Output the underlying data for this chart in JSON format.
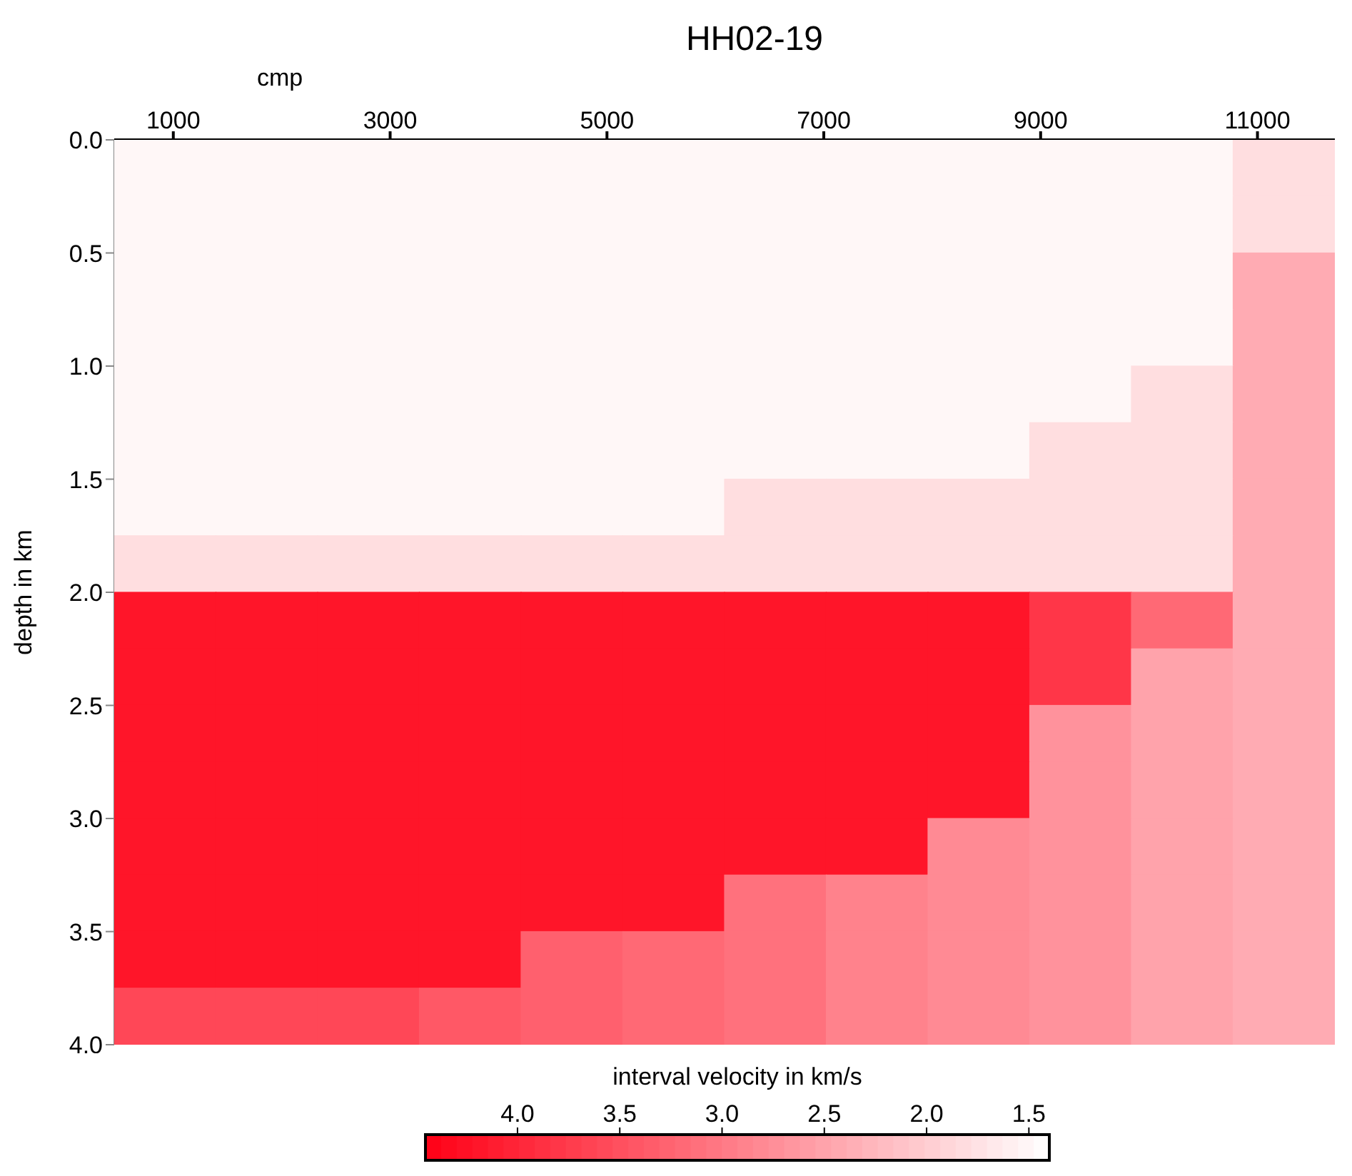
{
  "chart_data": {
    "type": "heatmap",
    "title": "HH02-19",
    "xlabel": "cmp",
    "ylabel": "depth in km",
    "clabel": "interval velocity in km/s",
    "xlim": [
      455,
      11714
    ],
    "xticks": [
      1000,
      3000,
      5000,
      7000,
      9000,
      11000
    ],
    "ylim": [
      4.0,
      0.0
    ],
    "yticks": [
      {
        "value": 0,
        "label": "0.0"
      },
      0.5,
      {
        "value": 1,
        "label": "1.0"
      },
      1.5,
      {
        "value": 2,
        "label": "2.0"
      },
      2.5,
      {
        "value": 3,
        "label": "3.0"
      },
      3.5,
      {
        "value": 4,
        "label": "4.0"
      }
    ],
    "clim": [
      4.45,
      1.4
    ],
    "cticks": [
      {
        "value": 4,
        "label": "4.0"
      },
      3.5,
      {
        "value": 3,
        "label": "3.0"
      },
      2.5,
      {
        "value": 2,
        "label": "2.0"
      },
      1.5
    ],
    "cells": [
      [
        1.5,
        1.5,
        1.5,
        1.5,
        1.5,
        1.5,
        1.5,
        1.5,
        1.5,
        1.5,
        1.5,
        1.8
      ],
      [
        1.5,
        1.5,
        1.5,
        1.5,
        1.5,
        1.5,
        1.5,
        1.5,
        1.5,
        1.5,
        1.5,
        1.8
      ],
      [
        1.5,
        1.5,
        1.5,
        1.5,
        1.5,
        1.5,
        1.5,
        1.5,
        1.5,
        1.5,
        1.5,
        2.4
      ],
      [
        1.5,
        1.5,
        1.5,
        1.5,
        1.5,
        1.5,
        1.5,
        1.5,
        1.5,
        1.5,
        1.5,
        2.4
      ],
      [
        1.5,
        1.5,
        1.5,
        1.5,
        1.5,
        1.5,
        1.5,
        1.5,
        1.5,
        1.5,
        1.8,
        2.4
      ],
      [
        1.5,
        1.5,
        1.5,
        1.5,
        1.5,
        1.5,
        1.5,
        1.5,
        1.5,
        1.8,
        1.8,
        2.4
      ],
      [
        1.5,
        1.5,
        1.5,
        1.5,
        1.5,
        1.5,
        1.8,
        1.8,
        1.8,
        1.8,
        1.8,
        2.4
      ],
      [
        1.8,
        1.8,
        1.8,
        1.8,
        1.8,
        1.8,
        1.8,
        1.8,
        1.8,
        1.8,
        1.8,
        2.4
      ],
      [
        4.2,
        4.2,
        4.2,
        4.2,
        4.2,
        4.2,
        4.2,
        4.2,
        4.2,
        3.8,
        3.2,
        2.4
      ],
      [
        4.2,
        4.2,
        4.2,
        4.2,
        4.2,
        4.2,
        4.2,
        4.2,
        4.2,
        3.8,
        2.5,
        2.4
      ],
      [
        4.2,
        4.2,
        4.2,
        4.2,
        4.2,
        4.2,
        4.2,
        4.2,
        4.2,
        2.7,
        2.5,
        2.4
      ],
      [
        4.2,
        4.2,
        4.2,
        4.2,
        4.2,
        4.2,
        4.2,
        4.2,
        4.2,
        2.7,
        2.5,
        2.4
      ],
      [
        4.2,
        4.2,
        4.2,
        4.2,
        4.2,
        4.2,
        4.2,
        4.2,
        2.8,
        2.7,
        2.5,
        2.4
      ],
      [
        4.2,
        4.2,
        4.2,
        4.2,
        4.2,
        4.2,
        3.1,
        2.9,
        2.8,
        2.7,
        2.5,
        2.4
      ],
      [
        4.2,
        4.2,
        4.2,
        4.2,
        3.3,
        3.2,
        3.1,
        2.9,
        2.8,
        2.7,
        2.5,
        2.4
      ],
      [
        3.6,
        3.6,
        3.6,
        3.4,
        3.3,
        3.2,
        3.1,
        2.9,
        2.8,
        2.7,
        2.5,
        2.4
      ]
    ]
  }
}
